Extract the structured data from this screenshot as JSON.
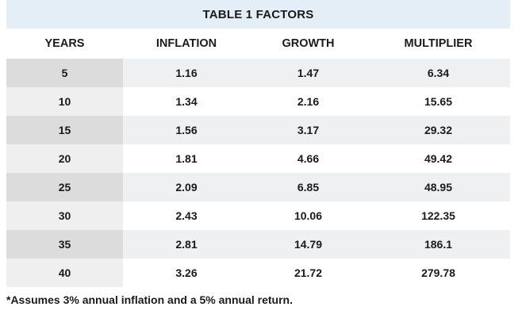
{
  "table": {
    "title": "TABLE 1 FACTORS",
    "columns": [
      "YEARS",
      "INFLATION",
      "GROWTH",
      "MULTIPLIER"
    ],
    "rows": [
      [
        "5",
        "1.16",
        "1.47",
        "6.34"
      ],
      [
        "10",
        "1.34",
        "2.16",
        "15.65"
      ],
      [
        "15",
        "1.56",
        "3.17",
        "29.32"
      ],
      [
        "20",
        "1.81",
        "4.66",
        "49.42"
      ],
      [
        "25",
        "2.09",
        "6.85",
        "48.95"
      ],
      [
        "30",
        "2.43",
        "10.06",
        "122.35"
      ],
      [
        "35",
        "2.81",
        "14.79",
        "186.1"
      ],
      [
        "40",
        "3.26",
        "21.72",
        "279.78"
      ]
    ],
    "footnote": "*Assumes 3% annual inflation and a 5% annual return."
  },
  "colors": {
    "title_background": "#e4eef6",
    "row_shade": "#eef0f2",
    "years_shade_dark": "#dcdcdc",
    "years_shade_light": "#efefef"
  }
}
